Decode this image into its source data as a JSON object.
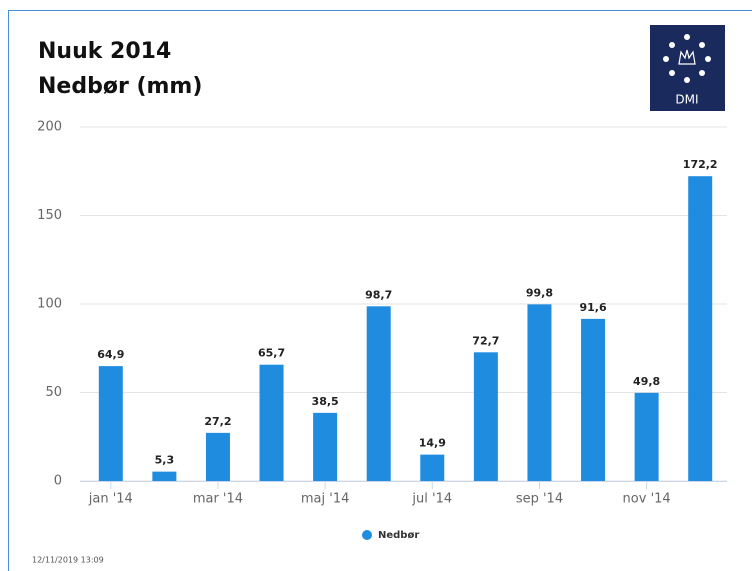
{
  "chart_data": {
    "type": "bar",
    "title": "Nuuk 2014",
    "subtitle": "Nedbør (mm)",
    "logo_text": "DMI",
    "footer": "12/11/2019 13:09",
    "categories": [
      "jan '14",
      null,
      "mar '14",
      null,
      "maj '14",
      null,
      "jul '14",
      null,
      "sep '14",
      null,
      "nov '14",
      null
    ],
    "series": [
      {
        "name": "Nedbør",
        "color": "#1f8ce0",
        "values": [
          64.9,
          5.3,
          27.2,
          65.7,
          38.5,
          98.7,
          14.9,
          72.7,
          99.8,
          91.6,
          49.8,
          172.2
        ],
        "value_labels": [
          "64,9",
          "5,3",
          "27,2",
          "65,7",
          "38,5",
          "98,7",
          "14,9",
          "72,7",
          "99,8",
          "91,6",
          "49,8",
          "172,2"
        ]
      }
    ],
    "ylim": [
      0,
      200
    ],
    "yticks": [
      0,
      50,
      100,
      150,
      200
    ],
    "grid": true,
    "legend": "bottom"
  }
}
